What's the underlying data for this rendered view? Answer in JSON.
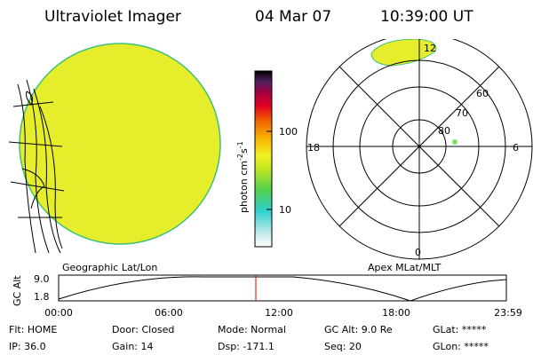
{
  "header": {
    "title": "Ultraviolet Imager",
    "date": "04 Mar 07",
    "time": "10:39:00 UT"
  },
  "colorbar": {
    "label": "photon cm",
    "exp1": "-2",
    "unit2": "s",
    "exp2": "-1",
    "ticks": [
      "100",
      "10"
    ]
  },
  "polar": {
    "mlt_labels": [
      "12",
      "18",
      "6",
      "0"
    ],
    "lat_labels": [
      "60",
      "70",
      "80"
    ]
  },
  "panels": {
    "left": "Geographic Lat/Lon",
    "right": "Apex MLat/MLT"
  },
  "altitude": {
    "label": "GC Alt",
    "yticks": [
      "9.0",
      "1.8"
    ],
    "xticks": [
      "00:00",
      "06:00",
      "12:00",
      "18:00",
      "23:59"
    ]
  },
  "status": {
    "rows": [
      [
        "Flt: HOME",
        "Door: Closed",
        "Mode: Normal",
        "GC Alt: 9.0 Re",
        "GLat: *****"
      ],
      [
        "IP: 36.0",
        "Gain: 14",
        "Dsp: -171.1",
        "Seq: 20",
        "GLon: *****"
      ]
    ]
  }
}
